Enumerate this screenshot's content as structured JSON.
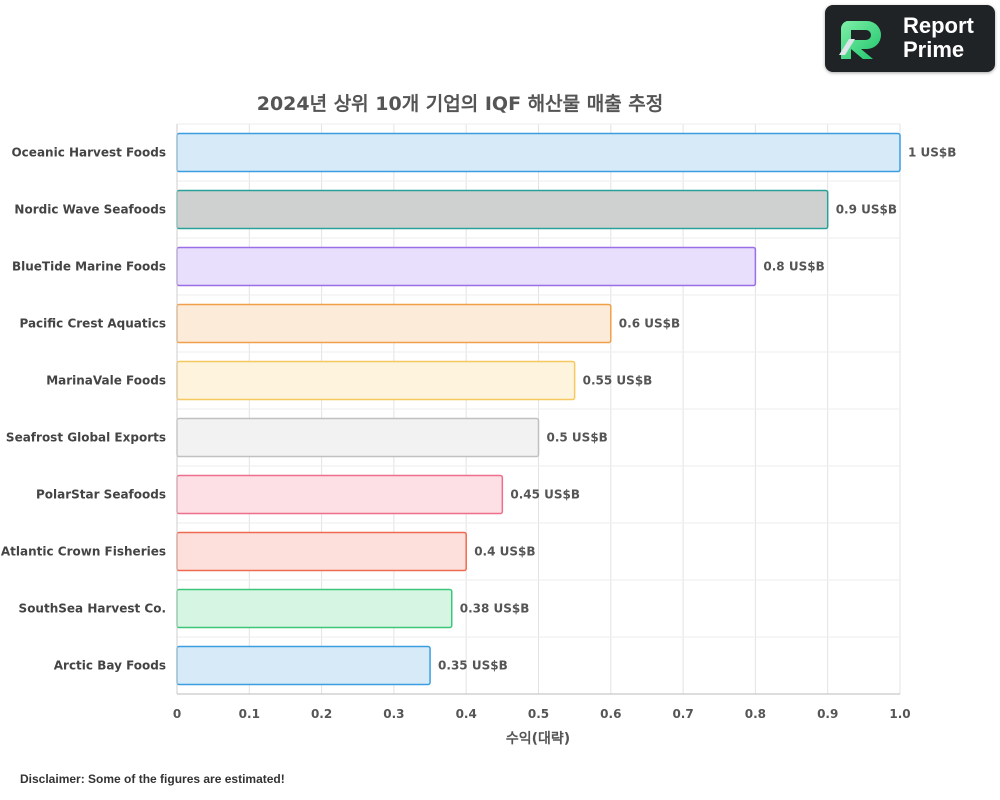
{
  "brand": {
    "line1": "Report",
    "line2": "Prime"
  },
  "disclaimer": "Disclaimer: Some of the figures are estimated!",
  "chart_data": {
    "type": "bar",
    "orientation": "horizontal",
    "title": "2024년 상위 10개 기업의 IQF 해산물 매출 추정",
    "xlabel": "수익(대략)",
    "ylabel": "",
    "xlim": [
      0,
      1.0
    ],
    "xticks": [
      "0",
      "0.1",
      "0.2",
      "0.3",
      "0.4",
      "0.5",
      "0.6",
      "0.7",
      "0.8",
      "0.9",
      "1.0"
    ],
    "grid": true,
    "categories": [
      "Oceanic Harvest Foods",
      "Nordic Wave Seafoods",
      "BlueTide Marine Foods",
      "Pacific Crest Aquatics",
      "MarinaVale Foods",
      "Seafrost Global Exports",
      "PolarStar Seafoods",
      "Atlantic Crown Fisheries",
      "SouthSea Harvest Co.",
      "Arctic Bay Foods"
    ],
    "values": [
      1,
      0.9,
      0.8,
      0.6,
      0.55,
      0.5,
      0.45,
      0.4,
      0.38,
      0.35
    ],
    "data_labels": [
      "1 US$B",
      "0.9 US$B",
      "0.8 US$B",
      "0.6 US$B",
      "0.55 US$B",
      "0.5 US$B",
      "0.45 US$B",
      "0.4 US$B",
      "0.38 US$B",
      "0.35 US$B"
    ],
    "fill_colors": [
      "#d6eaf8",
      "#cfd1d0",
      "#e8dffc",
      "#fdebd9",
      "#fef3dc",
      "#f2f2f2",
      "#fde0e5",
      "#fde0dc",
      "#d7f5e3",
      "#d6eaf8"
    ],
    "stroke_colors": [
      "#3a9ee0",
      "#2aa198",
      "#9a6ee6",
      "#f0a04b",
      "#f5c860",
      "#c0c0c0",
      "#ee6f8c",
      "#f06a50",
      "#3cc679",
      "#3a9ee0"
    ]
  }
}
